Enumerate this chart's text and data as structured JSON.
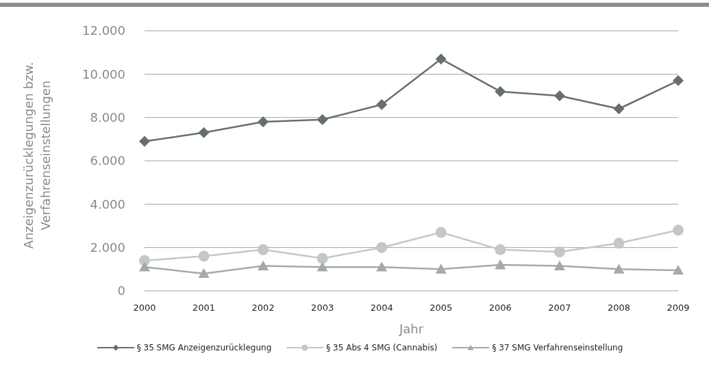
{
  "chart_data": {
    "type": "line",
    "xlabel": "Jahr",
    "ylabel": "Anzeigenzurücklegungen bzw. Verfahrenseinstellungen",
    "categories": [
      "2000",
      "2001",
      "2002",
      "2003",
      "2004",
      "2005",
      "2006",
      "2007",
      "2008",
      "2009"
    ],
    "series": [
      {
        "name": "§ 35 SMG Anzeigenzurücklegung",
        "color": "#667068",
        "marker": "diamond",
        "values": [
          6900,
          7300,
          7800,
          7900,
          8600,
          10700,
          9200,
          9000,
          8400,
          9700
        ]
      },
      {
        "name": "§ 35 Abs 4 SMG (Cannabis)",
        "color": "#c3c8c5",
        "marker": "circle",
        "values": [
          1400,
          1600,
          1900,
          1500,
          2000,
          2700,
          1900,
          1800,
          2200,
          2800
        ]
      },
      {
        "name": "§ 37 SMG Verfahrenseinstellung",
        "color": "#a3aba5",
        "marker": "triangle",
        "values": [
          1100,
          800,
          1150,
          1100,
          1100,
          1000,
          1200,
          1150,
          1000,
          950
        ]
      }
    ],
    "ylim": [
      0,
      12000
    ],
    "yticks": [
      0,
      {
        "value": 2000,
        "label": "2.000"
      },
      {
        "value": 4000,
        "label": "4.000"
      },
      {
        "value": 6000,
        "label": "6.000"
      },
      {
        "value": 8000,
        "label": "8.000"
      },
      {
        "value": 10000,
        "label": "10.000"
      },
      {
        "value": 12000,
        "label": "12.000"
      }
    ],
    "grid": "y",
    "legend": "bottom",
    "line_style": "solid"
  }
}
